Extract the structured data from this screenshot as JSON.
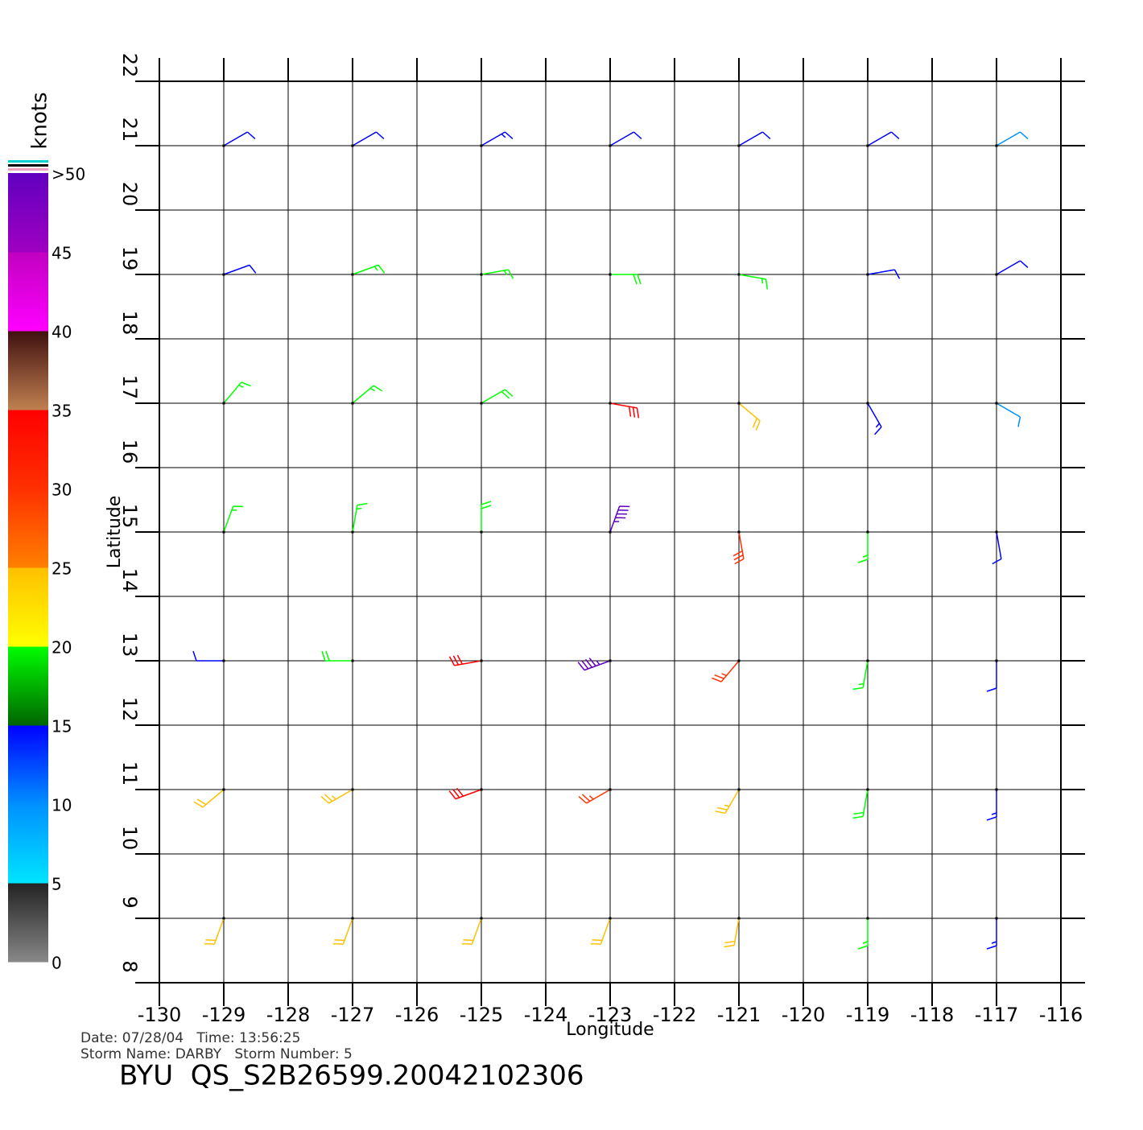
{
  "chart_data": {
    "type": "wind-barbs",
    "xlabel": "Longitude",
    "ylabel": "Latitude",
    "xlim": [
      -130,
      -116
    ],
    "ylim": [
      8,
      22
    ],
    "xticks": [
      -130,
      -129,
      -128,
      -127,
      -126,
      -125,
      -124,
      -123,
      -122,
      -121,
      -120,
      -119,
      -118,
      -117,
      -116
    ],
    "yticks": [
      8,
      9,
      10,
      11,
      12,
      13,
      14,
      15,
      16,
      17,
      18,
      19,
      20,
      21,
      22
    ],
    "grid": true,
    "colorbar": {
      "label": "knots",
      "lim": [
        0,
        50
      ],
      "ticks": [
        0,
        5,
        10,
        15,
        20,
        25,
        30,
        35,
        40,
        45,
        {
          "value": 50,
          "label": ">50"
        }
      ],
      "bands": [
        [
          "#888888",
          "#222222"
        ],
        [
          "#00e5ff",
          "#0090ff"
        ],
        [
          "#0090ff",
          "#0000ff"
        ],
        [
          "#006400",
          "#00ff00"
        ],
        [
          "#ffff00",
          "#ffc000"
        ],
        [
          "#ff8000",
          "#ff3000"
        ],
        [
          "#ff3000",
          "#ff0000"
        ],
        [
          "#c08050",
          "#401010"
        ],
        [
          "#ff00ff",
          "#c000c0"
        ],
        [
          "#a000c0",
          "#6000c0"
        ]
      ]
    },
    "wind": {
      "lon": [
        -129,
        -127,
        -125,
        -123,
        -121,
        -119,
        -117,
        -129,
        -127,
        -125,
        -123,
        -121,
        -119,
        -117,
        -129,
        -127,
        -125,
        -123,
        -121,
        -119,
        -117,
        -129,
        -127,
        -125,
        -123,
        -121,
        -119,
        -117,
        -129,
        -127,
        -125,
        -123,
        -121,
        -119,
        -117,
        -129,
        -127,
        -125,
        -123,
        -121,
        -119,
        -117,
        -129,
        -127,
        -125,
        -123,
        -121,
        -119,
        -117
      ],
      "lat": [
        21,
        21,
        21,
        21,
        21,
        21,
        21,
        19,
        19,
        19,
        19,
        19,
        19,
        19,
        17,
        17,
        17,
        17,
        17,
        17,
        17,
        15,
        15,
        15,
        15,
        15,
        15,
        15,
        13,
        13,
        13,
        13,
        13,
        13,
        13,
        11,
        11,
        11,
        11,
        11,
        11,
        11,
        9,
        9,
        9,
        9,
        9,
        9,
        9
      ],
      "speed": [
        12,
        12,
        13,
        12,
        12,
        11,
        8,
        12,
        16,
        17,
        18,
        16,
        12,
        11,
        17,
        17,
        18,
        31,
        22,
        13,
        8,
        16,
        17,
        19,
        45,
        28,
        17,
        12,
        12,
        18,
        32,
        45,
        27,
        17,
        12,
        22,
        23,
        31,
        26,
        23,
        18,
        13,
        22,
        22,
        22,
        22,
        21,
        17,
        14
      ],
      "direction": [
        60,
        60,
        60,
        60,
        60,
        60,
        60,
        70,
        70,
        80,
        90,
        100,
        80,
        60,
        40,
        50,
        60,
        100,
        130,
        150,
        120,
        20,
        10,
        0,
        20,
        170,
        180,
        170,
        270,
        270,
        260,
        250,
        220,
        190,
        180,
        230,
        240,
        250,
        240,
        210,
        190,
        180,
        200,
        200,
        200,
        200,
        190,
        180,
        180
      ]
    },
    "footer": [
      "Date: 07/28/04   Time: 13:56:25",
      "Storm Name: DARBY   Storm Number: 5"
    ],
    "source": "BYU  QS_S2B26599.20042102306"
  }
}
